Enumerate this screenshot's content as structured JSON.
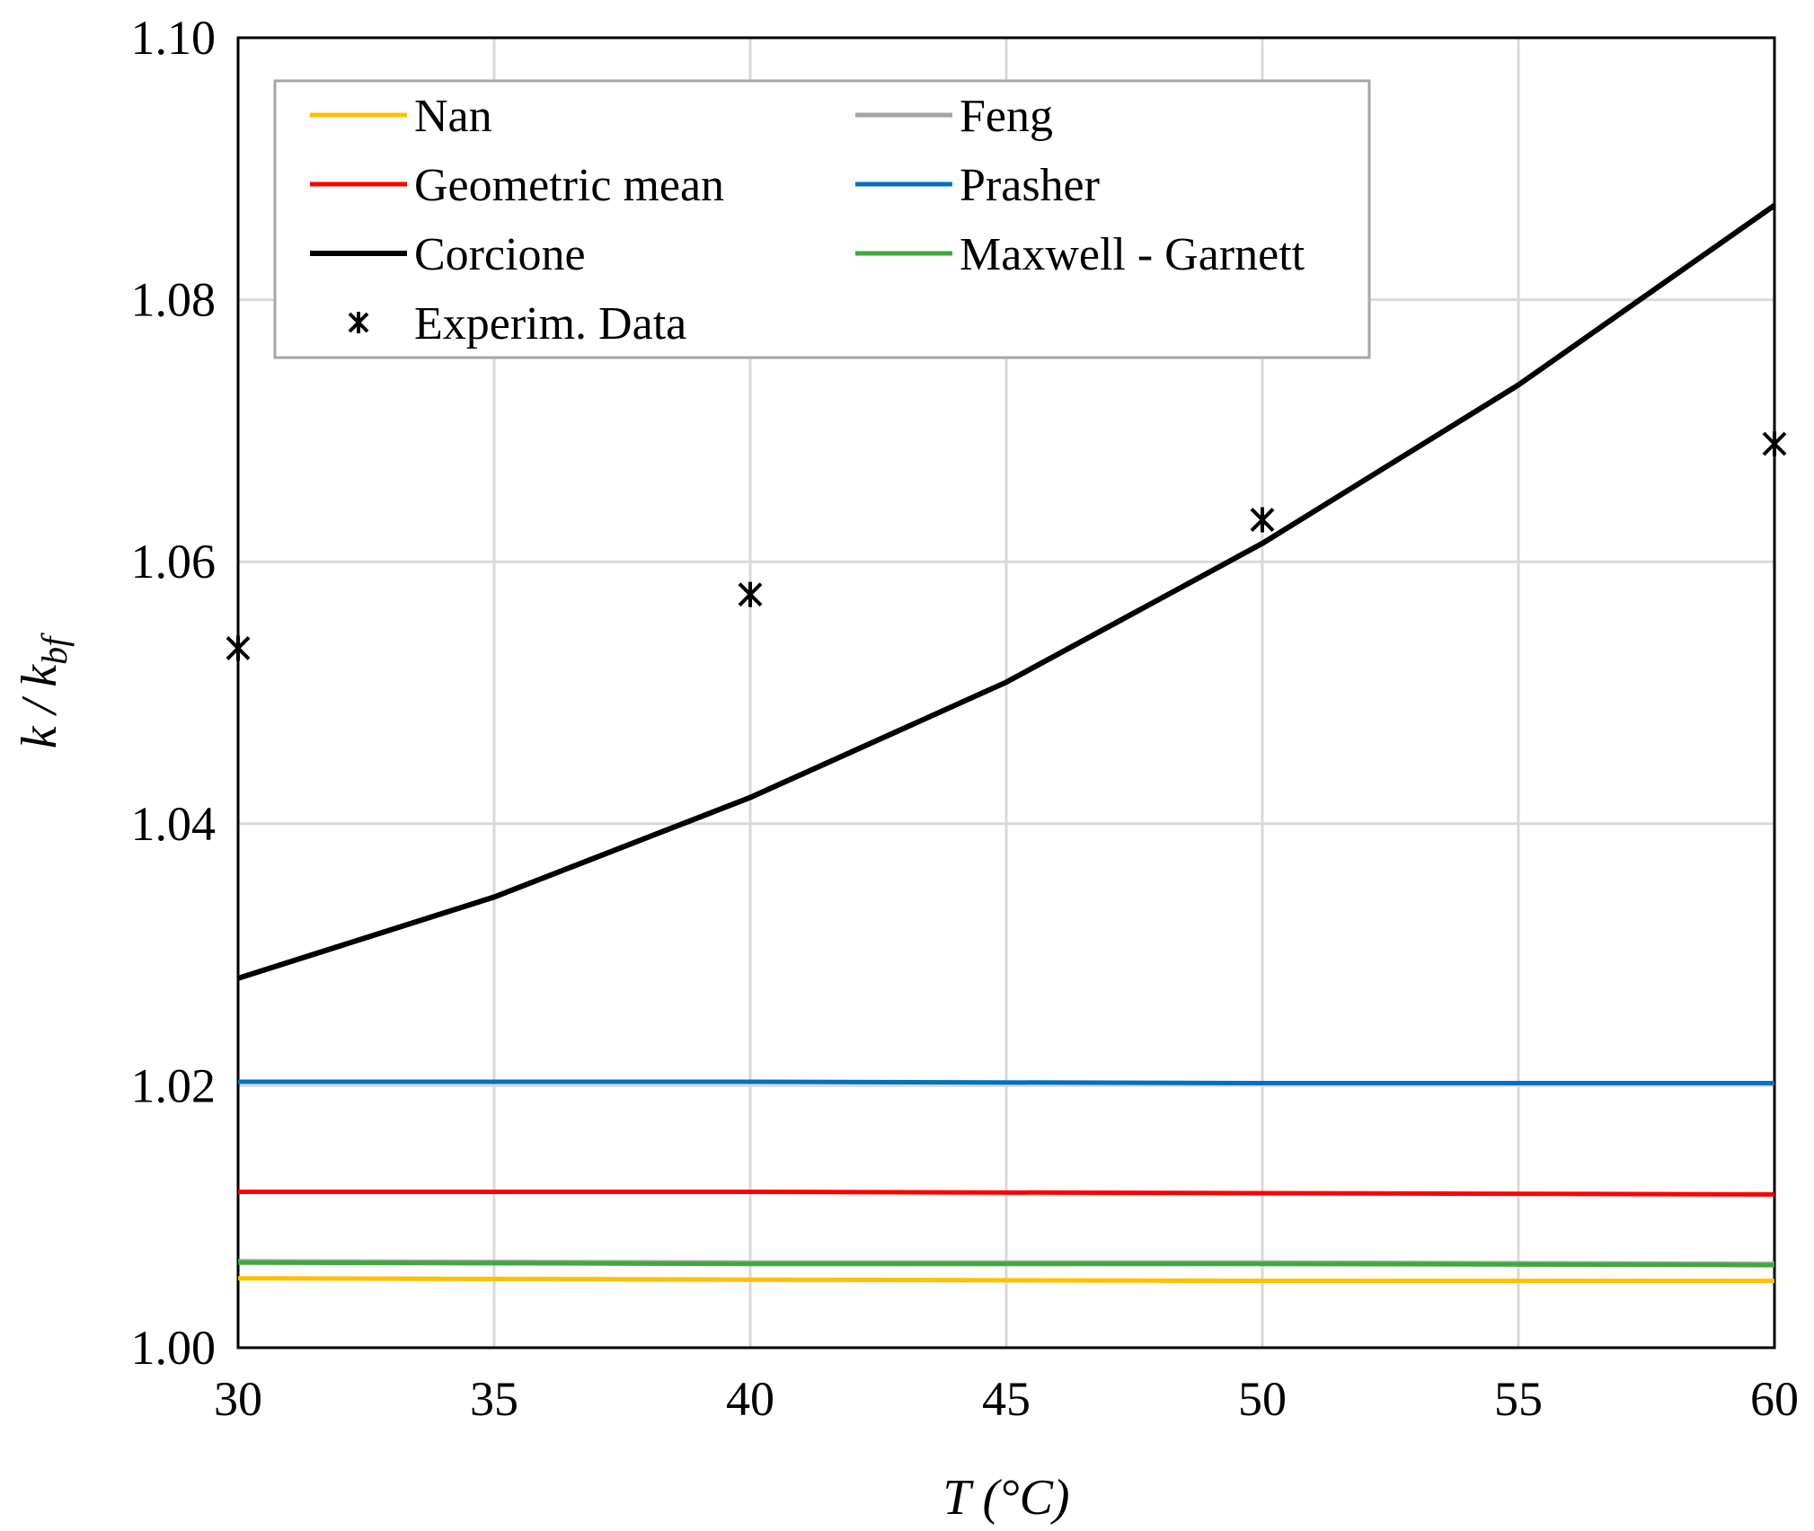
{
  "chart_data": {
    "type": "line",
    "xlabel": "T (°C)",
    "ylabel_main": "k / k",
    "ylabel_sub": "bf",
    "xlim": [
      30,
      60
    ],
    "ylim": [
      1.0,
      1.1
    ],
    "x_ticks": [
      "30",
      "35",
      "40",
      "45",
      "50",
      "55",
      "60"
    ],
    "y_ticks": [
      "1.00",
      "1.02",
      "1.04",
      "1.06",
      "1.08",
      "1.10"
    ],
    "grid": true,
    "legend_position": "top-left",
    "series": [
      {
        "name": "Nan",
        "color": "#FFC000",
        "kind": "line",
        "x": [
          30,
          40,
          50,
          60
        ],
        "y": [
          1.0053,
          1.0052,
          1.0051,
          1.0051
        ]
      },
      {
        "name": "Feng",
        "color": "#A5A5A5",
        "kind": "line",
        "x": [
          30,
          40,
          50,
          60
        ],
        "y": [
          1.0066,
          1.0065,
          1.0065,
          1.0064
        ]
      },
      {
        "name": "Geometric mean",
        "color": "#FF0000",
        "kind": "line",
        "x": [
          30,
          40,
          50,
          60
        ],
        "y": [
          1.0119,
          1.0119,
          1.0118,
          1.0117
        ]
      },
      {
        "name": "Prasher",
        "color": "#0070C0",
        "kind": "line",
        "x": [
          30,
          40,
          50,
          60
        ],
        "y": [
          1.0203,
          1.0203,
          1.0202,
          1.0202
        ]
      },
      {
        "name": "Corcione",
        "color": "#000000",
        "kind": "line",
        "x": [
          30,
          35,
          40,
          45,
          50,
          55,
          60
        ],
        "y": [
          1.0282,
          1.0344,
          1.042,
          1.0508,
          1.0614,
          1.0735,
          1.0872
        ]
      },
      {
        "name": "Maxwell - Garnett",
        "color": "#3CAA3C",
        "kind": "line",
        "x": [
          30,
          40,
          50,
          60
        ],
        "y": [
          1.0065,
          1.0064,
          1.0064,
          1.0063
        ]
      },
      {
        "name": "Experim. Data",
        "color": "#000000",
        "kind": "marker",
        "x": [
          30,
          40,
          50,
          60
        ],
        "y": [
          1.0534,
          1.0575,
          1.0632,
          1.069
        ]
      }
    ]
  }
}
